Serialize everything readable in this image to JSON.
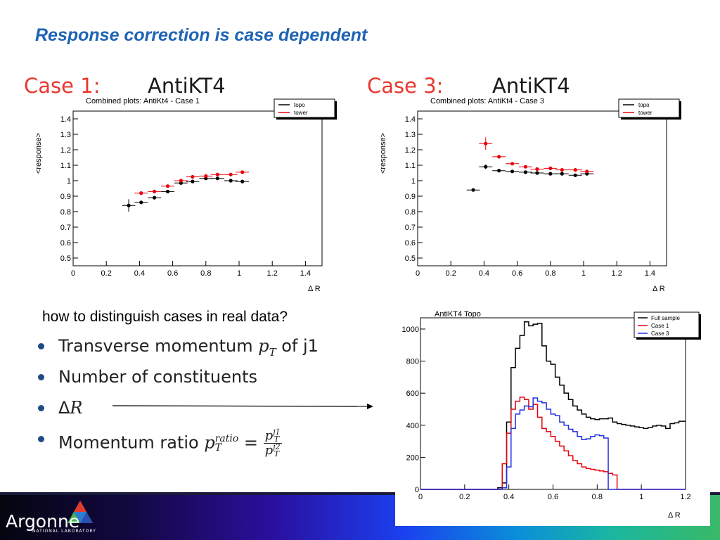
{
  "slide": {
    "title": "Response correction is case dependent",
    "question": "how to distinguish cases in real data?",
    "bullets": [
      {
        "pre": "Transverse momentum ",
        "math": "p",
        "sub": "T",
        "post": " of j1"
      },
      {
        "pre": "Number of constituents"
      },
      {
        "pre": "Δ",
        "math": "R"
      },
      {
        "pre": "Momentum ratio ",
        "math": "p",
        "sub": "T",
        "sup": "ratio",
        "eq": " = ",
        "num": "p",
        "num_sup": "j1",
        "num_sub": "T",
        "den": "p",
        "den_sup": "j2",
        "den_sub": "T"
      }
    ],
    "footer": {
      "logo_text": "Argonne",
      "logo_sub": "NATIONAL LABORATORY"
    },
    "colors": {
      "title": "#1f64b4",
      "case_label": "#e8382f",
      "topo": "#000000",
      "tower": "#e8000b",
      "full": "#000000",
      "case1": "#e8000b",
      "case3": "#2030e0"
    }
  },
  "panels": [
    {
      "case_label": "Case 1:",
      "algo": "AntiKT4"
    },
    {
      "case_label": "Case 3:",
      "algo": "AntiKT4"
    }
  ],
  "chart_data": [
    {
      "type": "scatter",
      "title": "Combined plots: AntiKt4 - Case 1",
      "xlabel": "Δ R",
      "ylabel": "<response>",
      "xlim": [
        0,
        1.5
      ],
      "ylim": [
        0.45,
        1.45
      ],
      "xticks": [
        0,
        0.2,
        0.4,
        0.6,
        0.8,
        1,
        1.2,
        1.4
      ],
      "yticks": [
        0.5,
        0.6,
        0.7,
        0.8,
        0.9,
        1,
        1.1,
        1.2,
        1.3,
        1.4
      ],
      "legend": "top-right",
      "series": [
        {
          "name": "topo",
          "color": "#000000",
          "x": [
            0.335,
            0.41,
            0.49,
            0.57,
            0.65,
            0.72,
            0.8,
            0.87,
            0.95,
            1.02
          ],
          "y": [
            0.84,
            0.86,
            0.89,
            0.93,
            0.985,
            0.995,
            1.015,
            1.015,
            1.0,
            0.995
          ],
          "yerr": [
            0.04,
            0.01,
            0.01,
            0.005,
            0.005,
            0.005,
            0.005,
            0.005,
            0.005,
            0.005
          ]
        },
        {
          "name": "tower",
          "color": "#e8000b",
          "x": [
            0.41,
            0.49,
            0.57,
            0.65,
            0.72,
            0.8,
            0.87,
            0.95,
            1.02
          ],
          "y": [
            0.92,
            0.93,
            0.965,
            1.0,
            1.025,
            1.03,
            1.04,
            1.04,
            1.055
          ],
          "yerr": [
            0.01,
            0.01,
            0.005,
            0.005,
            0.005,
            0.005,
            0.005,
            0.005,
            0.005
          ]
        }
      ]
    },
    {
      "type": "scatter",
      "title": "Combined plots: AntiKt4 - Case 3",
      "xlabel": "Δ R",
      "ylabel": "<response>",
      "xlim": [
        0,
        1.5
      ],
      "ylim": [
        0.45,
        1.45
      ],
      "xticks": [
        0,
        0.2,
        0.4,
        0.6,
        0.8,
        1,
        1.2,
        1.4
      ],
      "yticks": [
        0.5,
        0.6,
        0.7,
        0.8,
        0.9,
        1,
        1.1,
        1.2,
        1.3,
        1.4
      ],
      "legend": "top-right",
      "series": [
        {
          "name": "topo",
          "color": "#000000",
          "x": [
            0.335,
            0.41,
            0.49,
            0.57,
            0.65,
            0.72,
            0.8,
            0.87,
            0.95,
            1.02
          ],
          "y": [
            0.94,
            1.09,
            1.065,
            1.06,
            1.055,
            1.05,
            1.045,
            1.045,
            1.035,
            1.045
          ],
          "yerr": [
            0.005,
            0.015,
            0.008,
            0.005,
            0.005,
            0.005,
            0.005,
            0.005,
            0.005,
            0.005
          ]
        },
        {
          "name": "tower",
          "color": "#e8000b",
          "x": [
            0.41,
            0.49,
            0.57,
            0.65,
            0.72,
            0.8,
            0.87,
            0.95,
            1.02
          ],
          "y": [
            1.24,
            1.155,
            1.11,
            1.09,
            1.075,
            1.08,
            1.07,
            1.07,
            1.06
          ],
          "yerr": [
            0.04,
            0.01,
            0.008,
            0.005,
            0.005,
            0.005,
            0.005,
            0.005,
            0.005
          ]
        }
      ]
    },
    {
      "type": "line",
      "title": "AntiKT4 Topo",
      "xlabel": "Δ R",
      "ylabel": "",
      "xlim": [
        0,
        1.2
      ],
      "ylim": [
        0,
        1070
      ],
      "xticks": [
        0,
        0.2,
        0.4,
        0.6,
        0.8,
        1,
        1.2
      ],
      "yticks": [
        0,
        200,
        400,
        600,
        800,
        1000
      ],
      "legend": "top-right",
      "step": true,
      "x": [
        0.36,
        0.38,
        0.4,
        0.42,
        0.44,
        0.46,
        0.48,
        0.5,
        0.52,
        0.54,
        0.56,
        0.58,
        0.6,
        0.62,
        0.64,
        0.66,
        0.68,
        0.7,
        0.72,
        0.74,
        0.76,
        0.78,
        0.8,
        0.82,
        0.84,
        0.86,
        0.88,
        0.9,
        0.92,
        0.94,
        0.96,
        0.98,
        1.0,
        1.02,
        1.04,
        1.06,
        1.08,
        1.1,
        1.12,
        1.14,
        1.16,
        1.18
      ],
      "series": [
        {
          "name": "Full sample",
          "color": "#000000",
          "values": [
            10,
            40,
            420,
            760,
            880,
            960,
            1045,
            1020,
            1030,
            1035,
            895,
            800,
            780,
            700,
            650,
            600,
            560,
            520,
            495,
            470,
            450,
            440,
            435,
            440,
            440,
            445,
            420,
            410,
            405,
            400,
            395,
            390,
            385,
            380,
            385,
            395,
            400,
            395,
            380,
            410,
            415,
            425
          ]
        },
        {
          "name": "Case 1",
          "color": "#e8000b",
          "values": [
            0,
            160,
            350,
            500,
            550,
            575,
            560,
            500,
            530,
            450,
            380,
            360,
            330,
            300,
            270,
            240,
            210,
            180,
            160,
            140,
            130,
            125,
            120,
            115,
            110,
            100,
            90,
            0,
            0,
            0,
            0,
            0,
            0,
            0,
            0,
            0,
            0,
            0,
            0,
            0,
            0,
            0
          ]
        },
        {
          "name": "Case 3",
          "color": "#2030e0",
          "values": [
            0,
            10,
            140,
            380,
            470,
            495,
            520,
            515,
            570,
            550,
            540,
            500,
            470,
            460,
            420,
            400,
            375,
            360,
            330,
            310,
            315,
            330,
            340,
            335,
            320,
            0,
            0,
            0,
            0,
            0,
            0,
            0,
            0,
            0,
            0,
            0,
            0,
            0,
            0,
            0,
            0,
            0
          ]
        }
      ]
    }
  ]
}
